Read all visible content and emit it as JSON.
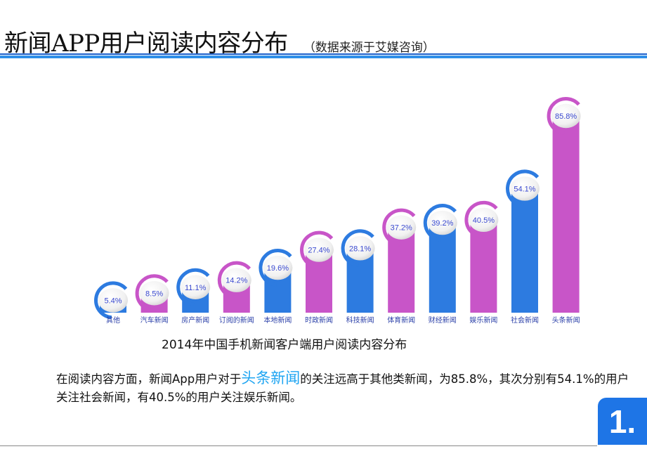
{
  "header": {
    "title": "新闻APP用户阅读内容分布",
    "source": "（数据来源于艾媒咨询）"
  },
  "chart_data": {
    "type": "bar",
    "caption": "2014年中国手机新闻客户端用户阅读内容分布",
    "categories": [
      "其他",
      "汽车新闻",
      "房产新闻",
      "订阅的新闻",
      "本地新闻",
      "时政新闻",
      "科技新闻",
      "体育新闻",
      "财经新闻",
      "娱乐新闻",
      "社会新闻",
      "头条新闻"
    ],
    "values": [
      5.4,
      8.5,
      11.1,
      14.2,
      19.6,
      27.4,
      28.1,
      37.2,
      39.2,
      40.5,
      54.1,
      85.8
    ],
    "data_labels": [
      "5.4%",
      "8.5%",
      "11.1%",
      "14.2%",
      "19.6%",
      "27.4%",
      "28.1%",
      "37.2%",
      "39.2%",
      "40.5%",
      "54.1%",
      "85.8%"
    ],
    "colors": [
      "#2d7be0",
      "#c855c8",
      "#2d7be0",
      "#c855c8",
      "#2d7be0",
      "#c855c8",
      "#2d7be0",
      "#c855c8",
      "#2d7be0",
      "#c855c8",
      "#2d7be0",
      "#c855c8"
    ],
    "ylim": [
      0,
      100
    ],
    "grid": false,
    "legend": "none"
  },
  "summary": {
    "part1": "在阅读内容方面，新闻App用户对于",
    "highlight": "头条新闻",
    "part2": "的关注远高于其他类新闻，为85.8%，其次分别有54.1%的用户关注社会新闻，有40.5%的用户关注娱乐新闻。"
  },
  "badge": {
    "label": "1."
  },
  "colors": {
    "accent_blue": "#2d7be0",
    "accent_magenta": "#c855c8",
    "highlight": "#1fa5f2"
  }
}
